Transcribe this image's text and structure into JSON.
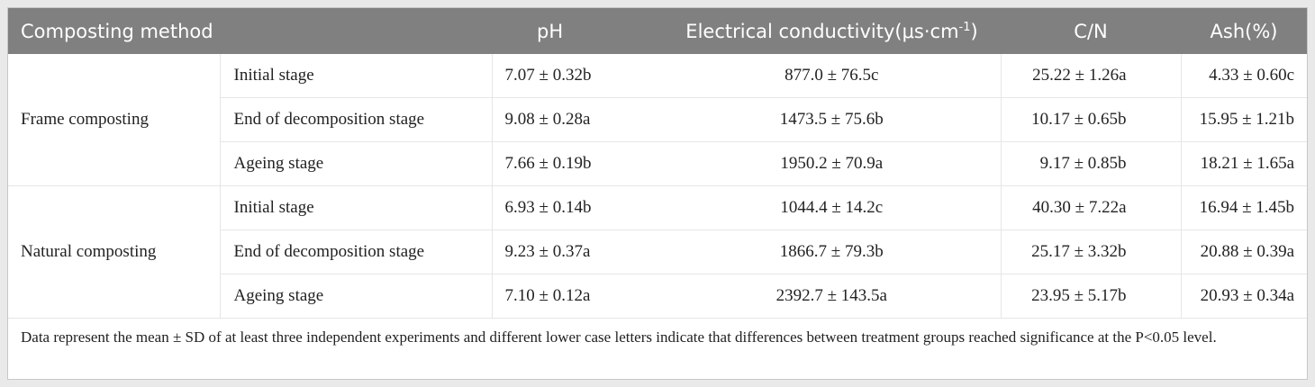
{
  "table": {
    "header": [
      "Composting method",
      "pH",
      {
        "main": "Electrical conductivity(μs·cm",
        "superscript": "-1",
        "end": ")"
      },
      "C/N",
      "Ash(%)"
    ],
    "groups": [
      {
        "method": "Frame composting",
        "rows": [
          {
            "stage": "Initial stage",
            "values": [
              "7.07 ± 0.32b",
              "877.0 ± 76.5c",
              "25.22 ± 1.26a",
              "4.33 ± 0.60c"
            ]
          },
          {
            "stage": "End of decomposition stage",
            "values": [
              "9.08 ± 0.28a",
              "1473.5 ± 75.6b",
              "10.17 ± 0.65b",
              "15.95 ± 1.21b"
            ]
          },
          {
            "stage": "Ageing stage",
            "values": [
              "7.66 ± 0.19b",
              "1950.2 ± 70.9a",
              "9.17 ± 0.85b",
              "18.21 ± 1.65a"
            ]
          }
        ]
      },
      {
        "method": "Natural composting",
        "rows": [
          {
            "stage": "Initial stage",
            "values": [
              "6.93 ± 0.14b",
              "1044.4 ± 14.2c",
              "40.30 ± 7.22a",
              "16.94 ± 1.45b"
            ]
          },
          {
            "stage": "End of decomposition stage",
            "values": [
              "9.23 ± 0.37a",
              "1866.7 ± 79.3b",
              "25.17 ± 3.32b",
              "20.88 ± 0.39a"
            ]
          },
          {
            "stage": "Ageing stage",
            "values": [
              "7.10 ± 0.12a",
              "2392.7 ± 143.5a",
              "23.95 ± 5.17b",
              "20.93 ± 0.34a"
            ]
          }
        ]
      }
    ],
    "footnote": "Data represent the mean ± SD of at least three independent experiments and different lower case letters indicate that differences between treatment groups reached significance at the P<0.05 level."
  }
}
